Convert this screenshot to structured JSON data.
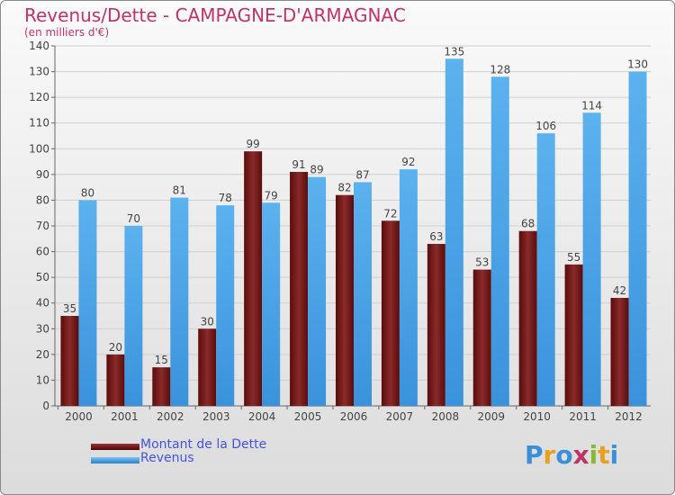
{
  "title": "Revenus/Dette - CAMPAGNE-D'ARMAGNAC",
  "subtitle": "(en milliers d'€)",
  "legend": [
    {
      "label": "Montant de la Dette",
      "color": "#6b0e0e"
    },
    {
      "label": "Revenus",
      "color": "#3d9ae0"
    }
  ],
  "logo": {
    "text": "Proxiti",
    "letters": [
      "P",
      "r",
      "o",
      "x",
      "i",
      "t",
      "i"
    ],
    "colors": [
      "#3a8fd8",
      "#e8a020",
      "#3a8fd8",
      "#c0336a",
      "#8ab830",
      "#e8a020",
      "#3a8fd8"
    ]
  },
  "chart_data": {
    "type": "bar",
    "categories": [
      "2000",
      "2001",
      "2002",
      "2003",
      "2004",
      "2005",
      "2006",
      "2007",
      "2008",
      "2009",
      "2010",
      "2011",
      "2012"
    ],
    "series": [
      {
        "name": "Montant de la Dette",
        "values": [
          35,
          20,
          15,
          30,
          99,
          91,
          82,
          72,
          63,
          53,
          68,
          55,
          42
        ],
        "color": "#7a1c1c"
      },
      {
        "name": "Revenus",
        "values": [
          80,
          70,
          81,
          78,
          79,
          89,
          87,
          92,
          135,
          128,
          106,
          114,
          130
        ],
        "color": "#4da6e8"
      }
    ],
    "ylim": [
      0,
      140
    ],
    "yticks": [
      0,
      10,
      20,
      30,
      40,
      50,
      60,
      70,
      80,
      90,
      100,
      110,
      120,
      130,
      140
    ],
    "title": "Revenus/Dette - CAMPAGNE-D'ARMAGNAC",
    "ylabel": "(en milliers d'€)",
    "xlabel": "",
    "grid": true
  }
}
